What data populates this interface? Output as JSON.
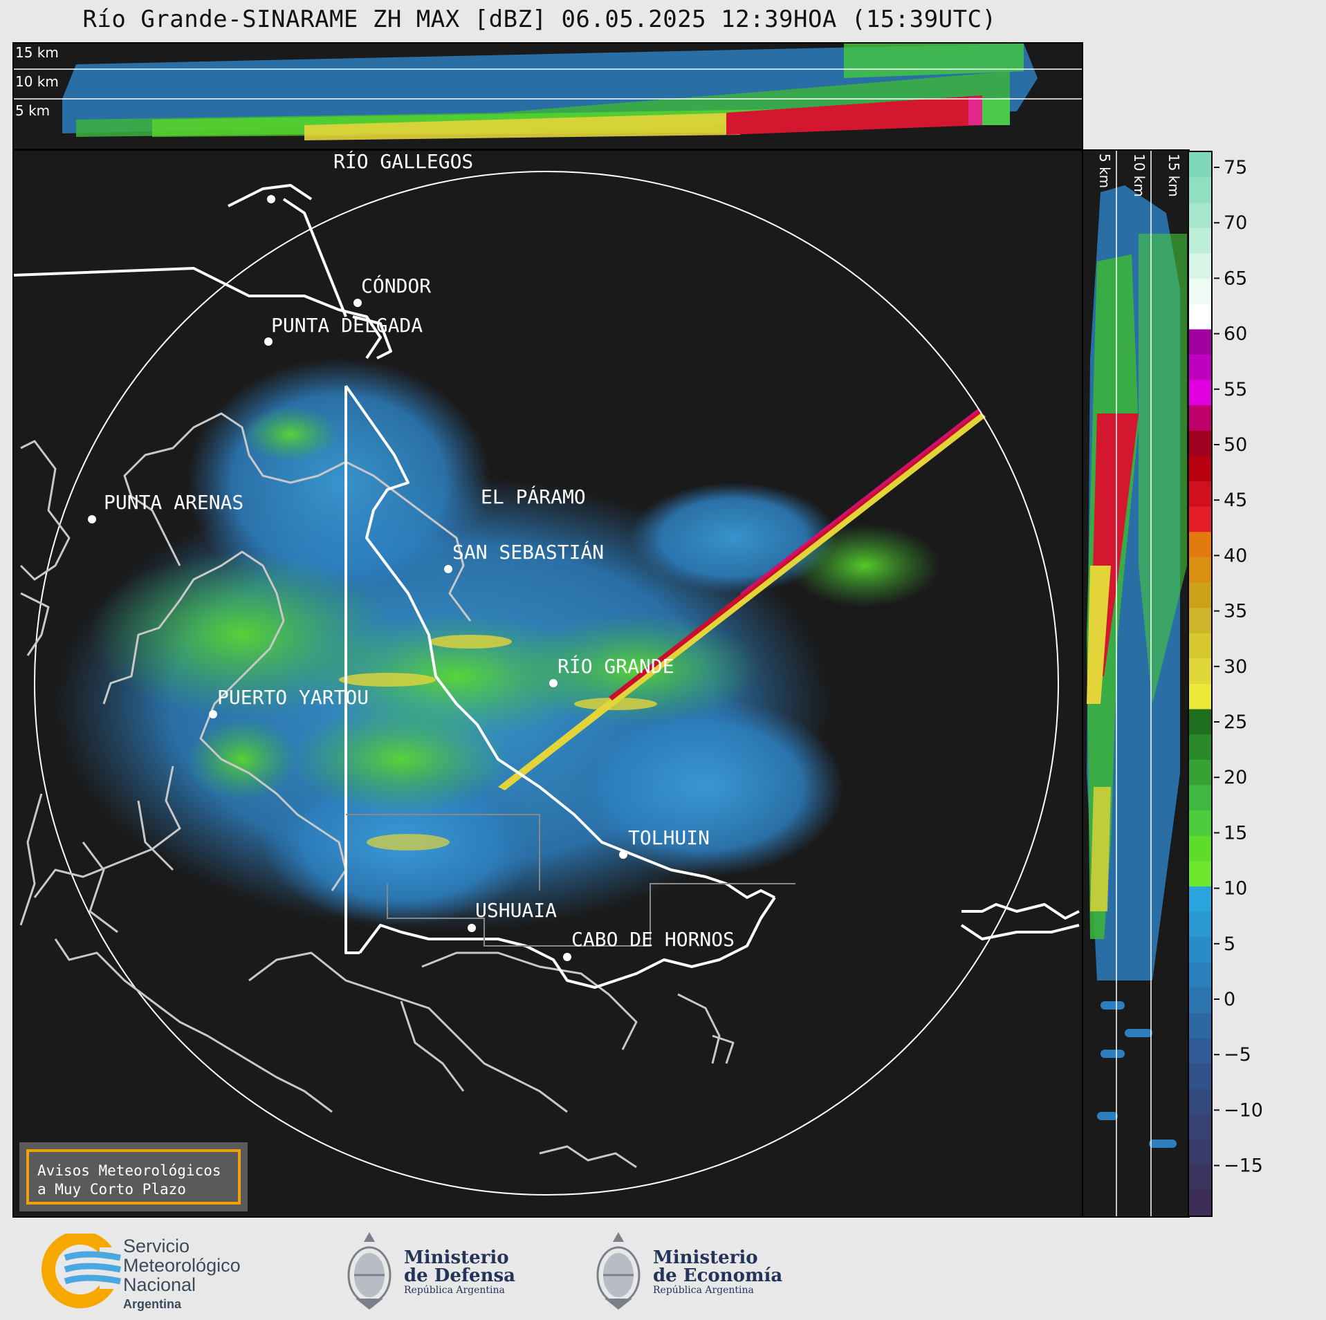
{
  "title": "Río Grande-SINARAME ZH MAX [dBZ] 06.05.2025 12:39HOA (15:39UTC)",
  "top_panel": {
    "altitude_labels": [
      "15 km",
      "10 km",
      "5 km"
    ]
  },
  "side_panel": {
    "altitude_labels": [
      "5 km",
      "10 km",
      "15 km"
    ]
  },
  "cities": [
    {
      "name": "RÍO GALLEGOS"
    },
    {
      "name": "CÓNDOR"
    },
    {
      "name": "PUNTA DELGADA"
    },
    {
      "name": "EL PÁRAMO"
    },
    {
      "name": "PUNTA ARENAS"
    },
    {
      "name": "SAN SEBASTIÁN"
    },
    {
      "name": "RÍO GRANDE"
    },
    {
      "name": "PUERTO YARTOU"
    },
    {
      "name": "TOLHUIN"
    },
    {
      "name": "USHUAIA"
    },
    {
      "name": "CABO DE HORNOS"
    }
  ],
  "colorbar": {
    "unit": "dBZ",
    "ticks": [
      "75",
      "70",
      "65",
      "60",
      "55",
      "50",
      "45",
      "40",
      "35",
      "30",
      "25",
      "20",
      "15",
      "10",
      "5",
      "0",
      "−5",
      "−10",
      "−15"
    ]
  },
  "notice": {
    "line1": "Avisos Meteorológicos",
    "line2": "a Muy Corto Plazo"
  },
  "logos": {
    "smn": {
      "line1": "Servicio",
      "line2": "Meteorológico",
      "line3": "Nacional",
      "line4": "Argentina"
    },
    "defensa": {
      "line1": "Ministerio",
      "line2": "de Defensa",
      "line3": "República Argentina"
    },
    "economia": {
      "line1": "Ministerio",
      "line2": "de Economía",
      "line3": "República Argentina"
    }
  },
  "colors": {
    "background": "#1a1a1a",
    "coast": "#c8c8c8",
    "border": "#ffffff",
    "notice_border": "#f2a10a"
  }
}
